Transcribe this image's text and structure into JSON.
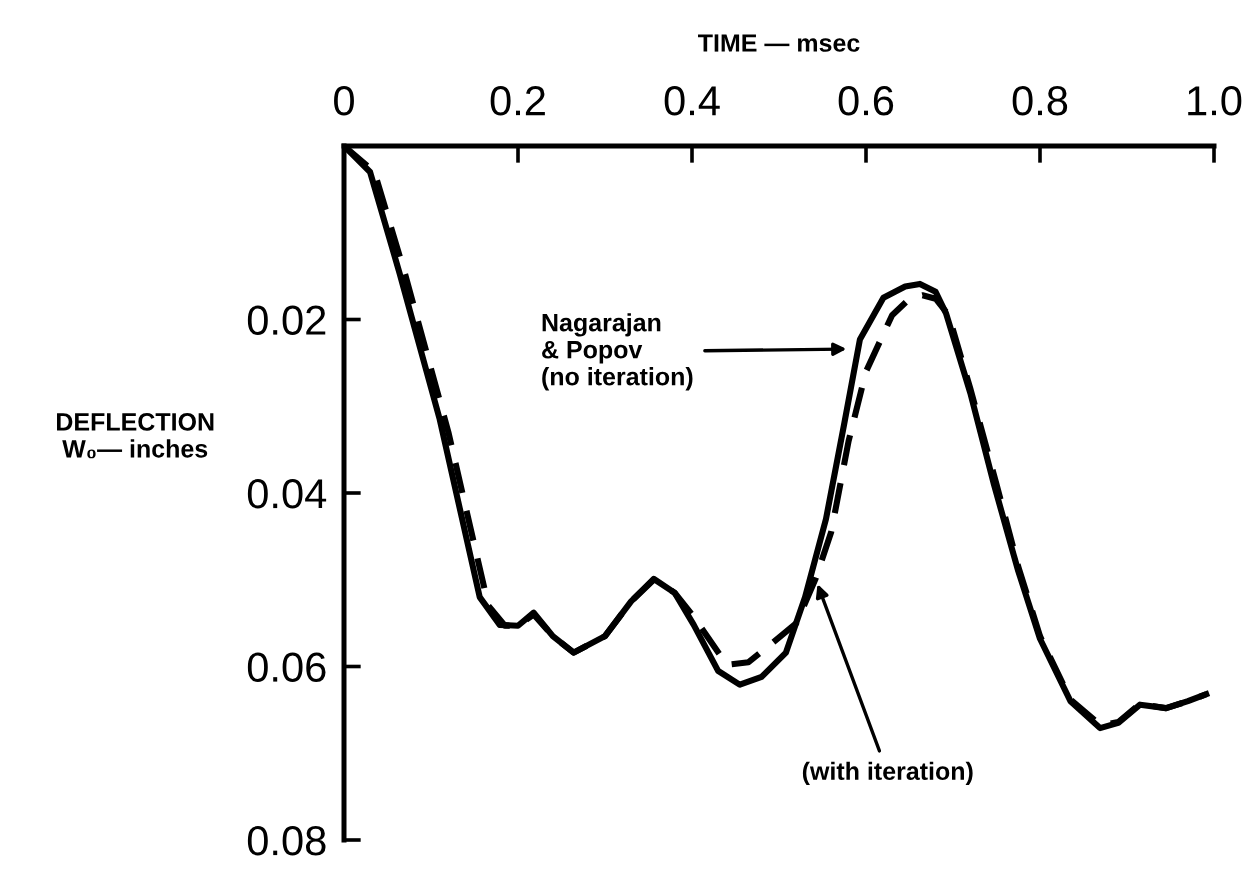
{
  "chart_data": {
    "type": "line",
    "xlabel": "TIME — msec",
    "ylabel": "DEFLECTION\nW₀— inches",
    "xlim": [
      0,
      1
    ],
    "xticks": [
      0,
      0.2,
      0.4,
      0.6,
      0.8,
      {
        "value": 1,
        "label": "1.0"
      }
    ],
    "ylim": [
      0.08,
      0
    ],
    "yticks": [
      0.02,
      0.04,
      0.06,
      0.08
    ],
    "grid": false,
    "marker": "none",
    "series": [
      {
        "color": "#000000",
        "line_style": "solid",
        "x": [
          0,
          0.03,
          0.064,
          0.11,
          0.156,
          0.179,
          0.2,
          0.218,
          0.24,
          0.264,
          0.3,
          0.33,
          0.356,
          0.38,
          0.402,
          0.43,
          0.455,
          0.48,
          0.508,
          0.53,
          0.554,
          0.575,
          0.593,
          0.62,
          0.645,
          0.662,
          0.68,
          0.692,
          0.72,
          0.747,
          0.775,
          0.8,
          0.835,
          0.869,
          0.89,
          0.915,
          0.945,
          0.97,
          0.991
        ],
        "values": [
          0,
          0.003,
          0.0147,
          0.0315,
          0.052,
          0.0552,
          0.0553,
          0.0538,
          0.0565,
          0.0584,
          0.0565,
          0.0525,
          0.0499,
          0.0515,
          0.0552,
          0.0605,
          0.0621,
          0.0612,
          0.0584,
          0.052,
          0.043,
          0.032,
          0.0223,
          0.0175,
          0.0162,
          0.0159,
          0.0168,
          0.0193,
          0.0285,
          0.039,
          0.049,
          0.0568,
          0.064,
          0.0671,
          0.0665,
          0.0644,
          0.0648,
          0.064,
          0.0632
        ]
      },
      {
        "color": "#000000",
        "line_style": "dashed",
        "x": [
          0,
          0.035,
          0.07,
          0.12,
          0.166,
          0.185,
          0.2,
          0.218,
          0.24,
          0.264,
          0.3,
          0.33,
          0.356,
          0.38,
          0.4,
          0.44,
          0.465,
          0.49,
          0.52,
          0.542,
          0.56,
          0.58,
          0.6,
          0.63,
          0.65,
          0.665,
          0.68,
          0.695,
          0.72,
          0.75,
          0.775,
          0.8,
          0.835,
          0.87,
          0.89,
          0.915,
          0.945,
          0.97,
          0.991
        ],
        "values": [
          0,
          0.003,
          0.0147,
          0.033,
          0.053,
          0.0553,
          0.0553,
          0.054,
          0.0565,
          0.0584,
          0.0565,
          0.0525,
          0.05,
          0.0515,
          0.054,
          0.0598,
          0.0595,
          0.0575,
          0.055,
          0.0499,
          0.0445,
          0.034,
          0.026,
          0.0195,
          0.0176,
          0.0172,
          0.0176,
          0.0195,
          0.028,
          0.039,
          0.0485,
          0.0565,
          0.0638,
          0.0668,
          0.0664,
          0.0643,
          0.0648,
          0.064,
          0.0632
        ]
      }
    ],
    "annotations": [
      {
        "text": "Nagarajan\n& Popov\n(no iteration)",
        "x": 0.584,
        "y": 0.0234
      },
      {
        "text": "(with iteration)",
        "x": 0.542,
        "y": 0.0499
      }
    ]
  }
}
